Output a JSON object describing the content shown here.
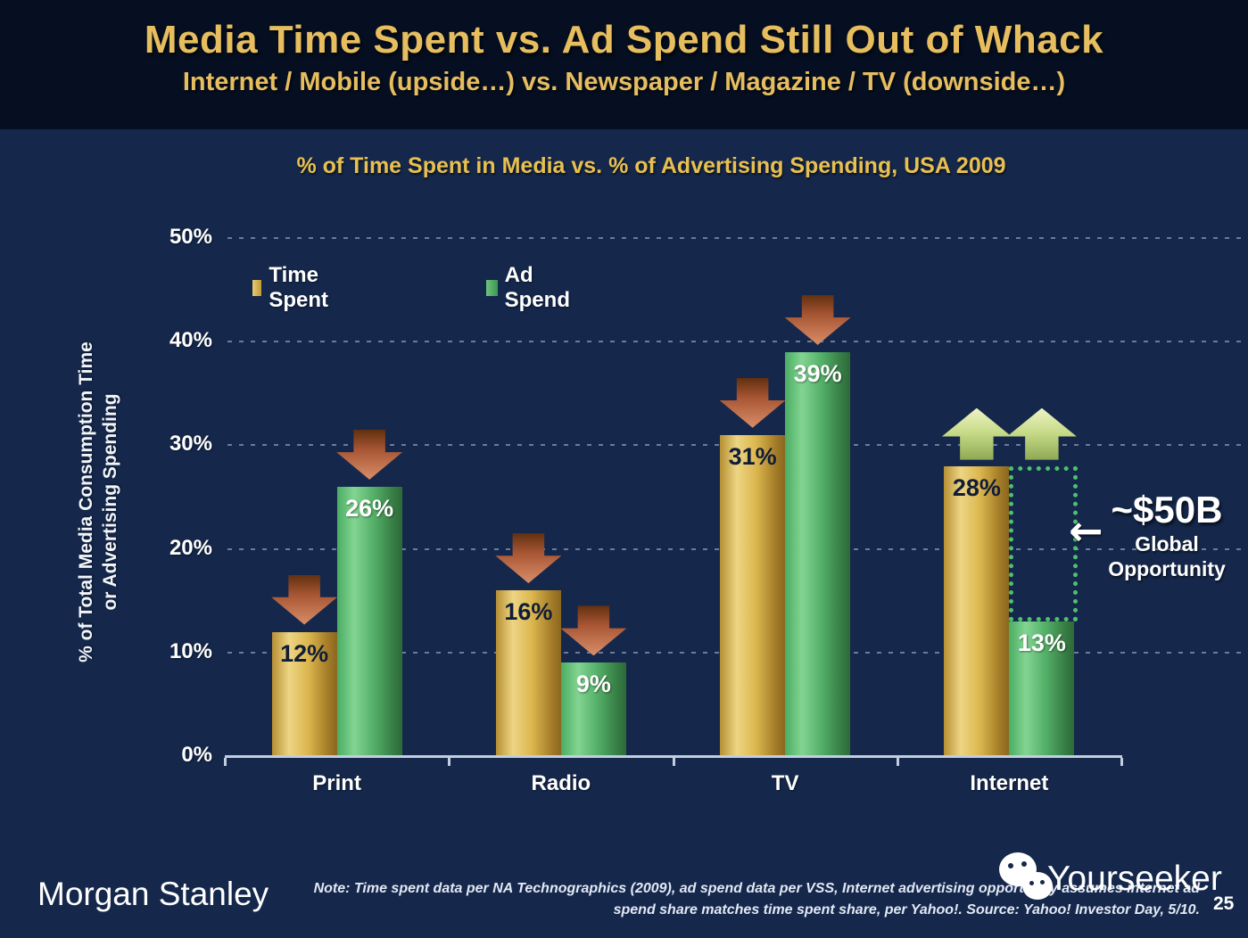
{
  "slide": {
    "title": "Media Time Spent vs. Ad Spend Still Out of Whack",
    "subtitle": "Internet / Mobile (upside…) vs. Newspaper / Magazine / TV (downside…)"
  },
  "chart_data": {
    "type": "bar",
    "title": "% of Time Spent in Media vs. % of Advertising Spending, USA 2009",
    "ylabel_line1": "% of Total Media Consumption Time",
    "ylabel_line2": "or Advertising Spending",
    "categories": [
      "Print",
      "Radio",
      "TV",
      "Internet"
    ],
    "series": [
      {
        "name": "Time Spent",
        "color": "#d9b14c",
        "values": [
          12,
          16,
          31,
          28
        ],
        "labels": [
          "12%",
          "16%",
          "31%",
          "28%"
        ]
      },
      {
        "name": "Ad Spend",
        "color": "#4cab66",
        "values": [
          26,
          9,
          39,
          13
        ],
        "labels": [
          "26%",
          "9%",
          "39%",
          "13%"
        ]
      }
    ],
    "ylim": [
      0,
      50
    ],
    "yticks": [
      {
        "value": 50,
        "label": "50%"
      },
      {
        "value": 40,
        "label": "40%"
      },
      {
        "value": 30,
        "label": "30%"
      },
      {
        "value": 20,
        "label": "20%"
      },
      {
        "value": 10,
        "label": "10%"
      },
      {
        "value": 0,
        "label": "0%"
      }
    ],
    "grid": "dashed-horizontal",
    "legend_position": "top-left-inside",
    "trend_arrows": [
      [
        "down",
        "down"
      ],
      [
        "down",
        "down"
      ],
      [
        "down",
        "down"
      ],
      [
        "up",
        "up"
      ]
    ]
  },
  "annotation": {
    "value": "~$50B",
    "label_line1": "Global",
    "label_line2": "Opportunity",
    "arrow_glyph": "←",
    "gap_rect_category": "Internet",
    "rect_color": "#4fc06d"
  },
  "footer": {
    "brand": "Morgan Stanley",
    "note_line1": "Note: Time spent data per NA Technographics (2009), ad spend data per VSS, Internet advertising opportunity assumes internet ad",
    "note_line2": "spend share matches time spent share, per Yahoo!. Source: Yahoo! Investor Day, 5/10.",
    "watermark": "Yourseeker",
    "page_number": "25"
  }
}
